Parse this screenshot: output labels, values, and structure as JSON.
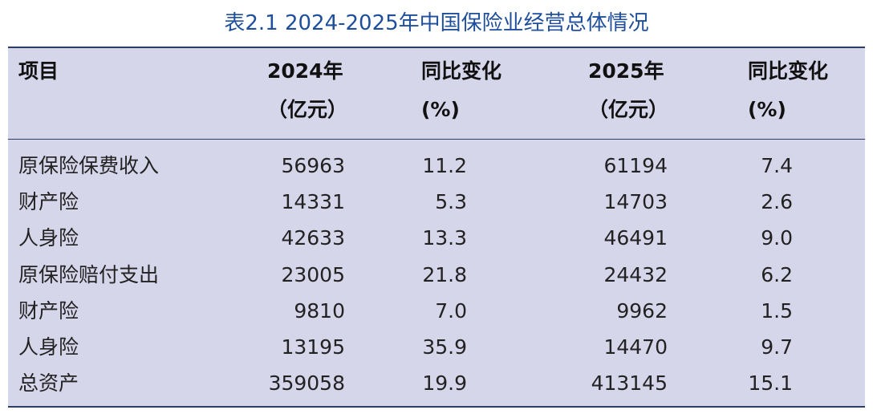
{
  "title": "表2.1  2024-2025年中国保险业经营总体情况",
  "table": {
    "header": [
      {
        "lines": [
          "项目"
        ]
      },
      {
        "lines": [
          "2024年",
          "（亿元）"
        ]
      },
      {
        "lines": [
          "同比变化",
          "(%)"
        ]
      },
      {
        "lines": [
          "2025年",
          "（亿元）"
        ]
      },
      {
        "lines": [
          "同比变化",
          "(%)"
        ]
      }
    ],
    "rows": [
      [
        "原保险保费收入",
        "56963",
        "11.2",
        "61194",
        "7.4"
      ],
      [
        "财产险",
        "14331",
        "5.3",
        "14703",
        "2.6"
      ],
      [
        "人身险",
        "42633",
        "13.3",
        "46491",
        "9.0"
      ],
      [
        "原保险赔付支出",
        "23005",
        "21.8",
        "24432",
        "6.2"
      ],
      [
        "财产险",
        "9810",
        "7.0",
        "9962",
        "1.5"
      ],
      [
        "人身险",
        "13195",
        "35.9",
        "14470",
        "9.7"
      ],
      [
        "总资产",
        "359058",
        "19.9",
        "413145",
        "15.1"
      ]
    ]
  }
}
